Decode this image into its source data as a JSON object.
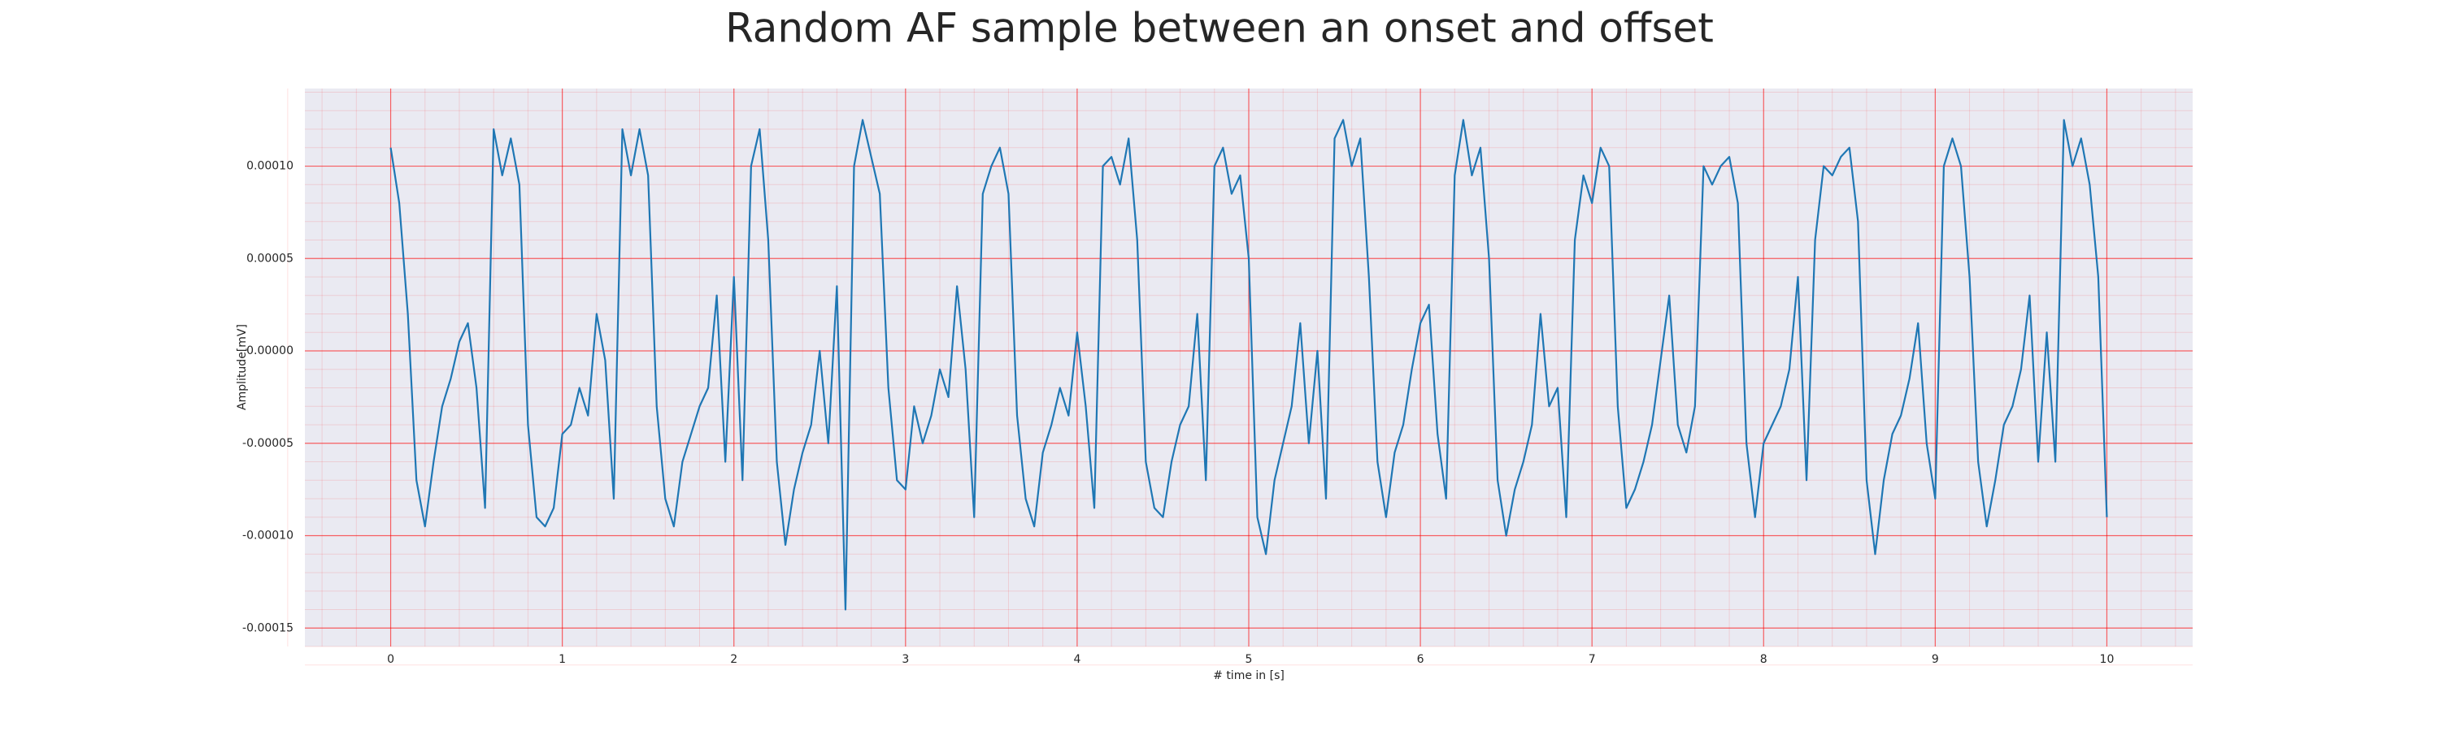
{
  "chart_data": {
    "type": "line",
    "title": "Random AF sample between an onset and offset",
    "xlabel": "# time in [s]",
    "ylabel": "Amplitude[mV]",
    "xlim": [
      -0.5,
      10.5
    ],
    "ylim": [
      -0.00016,
      0.000142
    ],
    "xticks": [
      0,
      1,
      2,
      3,
      4,
      5,
      6,
      7,
      8,
      9,
      10
    ],
    "yticks": [
      {
        "value": -0.00015,
        "label": "-0.00015"
      },
      {
        "value": -0.0001,
        "label": "-0.00010"
      },
      {
        "value": -5e-05,
        "label": "-0.00005"
      },
      {
        "value": 0,
        "label": "0.00000"
      },
      {
        "value": 5e-05,
        "label": "0.00005"
      },
      {
        "value": 0.0001,
        "label": "0.00010"
      }
    ],
    "grid": true,
    "minor_grid": true,
    "grid_color": "#ff0000",
    "background": "#eaeaf2",
    "x": [
      0,
      0.05,
      0.1,
      0.15,
      0.2,
      0.25,
      0.3,
      0.35,
      0.4,
      0.45,
      0.5,
      0.55,
      0.6,
      0.65,
      0.7,
      0.75,
      0.8,
      0.85,
      0.9,
      0.95,
      1,
      1.05,
      1.1,
      1.15,
      1.2,
      1.25,
      1.3,
      1.35,
      1.4,
      1.45,
      1.5,
      1.55,
      1.6,
      1.65,
      1.7,
      1.75,
      1.8,
      1.85,
      1.9,
      1.95,
      2,
      2.05,
      2.1,
      2.15,
      2.2,
      2.25,
      2.3,
      2.35,
      2.4,
      2.45,
      2.5,
      2.55,
      2.6,
      2.65,
      2.7,
      2.75,
      2.8,
      2.85,
      2.9,
      2.95,
      3,
      3.05,
      3.1,
      3.15,
      3.2,
      3.25,
      3.3,
      3.35,
      3.4,
      3.45,
      3.5,
      3.55,
      3.6,
      3.65,
      3.7,
      3.75,
      3.8,
      3.85,
      3.9,
      3.95,
      4,
      4.05,
      4.1,
      4.15,
      4.2,
      4.25,
      4.3,
      4.35,
      4.4,
      4.45,
      4.5,
      4.55,
      4.6,
      4.65,
      4.7,
      4.75,
      4.8,
      4.85,
      4.9,
      4.95,
      5,
      5.05,
      5.1,
      5.15,
      5.2,
      5.25,
      5.3,
      5.35,
      5.4,
      5.45,
      5.5,
      5.55,
      5.6,
      5.65,
      5.7,
      5.75,
      5.8,
      5.85,
      5.9,
      5.95,
      6,
      6.05,
      6.1,
      6.15,
      6.2,
      6.25,
      6.3,
      6.35,
      6.4,
      6.45,
      6.5,
      6.55,
      6.6,
      6.65,
      6.7,
      6.75,
      6.8,
      6.85,
      6.9,
      6.95,
      7,
      7.05,
      7.1,
      7.15,
      7.2,
      7.25,
      7.3,
      7.35,
      7.4,
      7.45,
      7.5,
      7.55,
      7.6,
      7.65,
      7.7,
      7.75,
      7.8,
      7.85,
      7.9,
      7.95,
      8,
      8.05,
      8.1,
      8.15,
      8.2,
      8.25,
      8.3,
      8.35,
      8.4,
      8.45,
      8.5,
      8.55,
      8.6,
      8.65,
      8.7,
      8.75,
      8.8,
      8.85,
      8.9,
      8.95,
      9,
      9.05,
      9.1,
      9.15,
      9.2,
      9.25,
      9.3,
      9.35,
      9.4,
      9.45,
      9.5,
      9.55,
      9.6,
      9.65,
      9.7,
      9.75,
      9.8,
      9.85,
      9.9,
      9.95,
      10
    ],
    "series": [
      {
        "color": "#1f77b4",
        "values": [
          0.00011,
          8e-05,
          2e-05,
          -7e-05,
          -9.5e-05,
          -6e-05,
          -3e-05,
          -1.5e-05,
          5e-06,
          1.5e-05,
          -2e-05,
          -8.5e-05,
          0.00012,
          9.5e-05,
          0.000115,
          9e-05,
          -4e-05,
          -9e-05,
          -9.5e-05,
          -8.5e-05,
          -4.5e-05,
          -4e-05,
          -2e-05,
          -3.5e-05,
          2e-05,
          -5e-06,
          -8e-05,
          0.00012,
          9.5e-05,
          0.00012,
          9.5e-05,
          -3e-05,
          -8e-05,
          -9.5e-05,
          -6e-05,
          -4.5e-05,
          -3e-05,
          -2e-05,
          3e-05,
          -6e-05,
          4e-05,
          -7e-05,
          0.0001,
          0.00012,
          6e-05,
          -6e-05,
          -0.000105,
          -7.5e-05,
          -5.5e-05,
          -4e-05,
          0,
          -5e-05,
          3.5e-05,
          -0.00014,
          0.0001,
          0.000125,
          0.000105,
          8.5e-05,
          -2e-05,
          -7e-05,
          -7.5e-05,
          -3e-05,
          -5e-05,
          -3.5e-05,
          -1e-05,
          -2.5e-05,
          3.5e-05,
          -1e-05,
          -9e-05,
          8.5e-05,
          0.0001,
          0.00011,
          8.5e-05,
          -3.5e-05,
          -8e-05,
          -9.5e-05,
          -5.5e-05,
          -4e-05,
          -2e-05,
          -3.5e-05,
          1e-05,
          -3e-05,
          -8.5e-05,
          0.0001,
          0.000105,
          9e-05,
          0.000115,
          6e-05,
          -6e-05,
          -8.5e-05,
          -9e-05,
          -6e-05,
          -4e-05,
          -3e-05,
          2e-05,
          -7e-05,
          0.0001,
          0.00011,
          8.5e-05,
          9.5e-05,
          5e-05,
          -9e-05,
          -0.00011,
          -7e-05,
          -5e-05,
          -3e-05,
          1.5e-05,
          -5e-05,
          0,
          -8e-05,
          0.000115,
          0.000125,
          0.0001,
          0.000115,
          4e-05,
          -6e-05,
          -9e-05,
          -5.5e-05,
          -4e-05,
          -1e-05,
          1.5e-05,
          2.5e-05,
          -4.5e-05,
          -8e-05,
          9.5e-05,
          0.000125,
          9.5e-05,
          0.00011,
          5e-05,
          -7e-05,
          -0.0001,
          -7.5e-05,
          -6e-05,
          -4e-05,
          2e-05,
          -3e-05,
          -2e-05,
          -9e-05,
          6e-05,
          9.5e-05,
          8e-05,
          0.00011,
          0.0001,
          -3e-05,
          -8.5e-05,
          -7.5e-05,
          -6e-05,
          -4e-05,
          -5e-06,
          3e-05,
          -4e-05,
          -5.5e-05,
          -3e-05,
          0.0001,
          9e-05,
          0.0001,
          0.000105,
          8e-05,
          -5e-05,
          -9e-05,
          -5e-05,
          -4e-05,
          -3e-05,
          -1e-05,
          4e-05,
          -7e-05,
          6e-05,
          0.0001,
          9.5e-05,
          0.000105,
          0.00011,
          7e-05,
          -7e-05,
          -0.00011,
          -7e-05,
          -4.5e-05,
          -3.5e-05,
          -1.5e-05,
          1.5e-05,
          -5e-05,
          -8e-05,
          0.0001,
          0.000115,
          0.0001,
          4e-05,
          -6e-05,
          -9.5e-05,
          -7e-05,
          -4e-05,
          -3e-05,
          -1e-05,
          3e-05,
          -6e-05,
          1e-05,
          -6e-05,
          0.000125,
          0.0001,
          0.000115,
          9e-05,
          4e-05,
          -9e-05
        ]
      }
    ]
  }
}
